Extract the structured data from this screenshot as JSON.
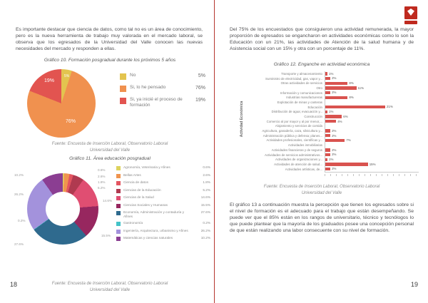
{
  "divider_color": "#b5362e",
  "left_page": {
    "page_number": "18",
    "intro": "Es importante destacar que ciencia de datos, como tal no es un área de conocimiento, pero es la nueva herramienta de trabajo muy valorada en el mercado laboral, se observa que los egresados de la Universidad del Valle conocen las nuevas necesidades del mercado y responden a ellas.",
    "grafico10": {
      "fuente": [
        "Fuente: Encuesta de Inserción Laboral, Observatorio Laboral",
        "Universidad del Valle"
      ]
    },
    "grafico11": {
      "fuente": [
        "Fuente: Encuesta de Inserción Laboral, Observatorio Laboral",
        "Universidad del Valle"
      ]
    }
  },
  "right_page": {
    "page_number": "19",
    "intro": "Del 75% de los encuestados que consiguieron una actividad remunerada, la mayor proporción de egresados se engancharon en actividades económicas como lo son la Educación con un 21%, las actividades de Atención de la salud humana y de Asistencia social con un 15% y otra con un porcentaje de 11%.",
    "grafico12": {
      "fuente": [
        "Fuente: Encuesta de Inserción Laboral, Observatorio Laboral",
        "Universidad del Valle"
      ]
    },
    "closing": "El gráfico 13 a continuación muestra la percepción que tienen los egresados sobre si el nivel de formación es el adecuado para el trabajo que están desempeñando. Se puede ver que el 85% están en los rangos de universitario, técnico y tecnólogos lo que puede plantear que la mayoría de los graduados posee una concepción personal de que están realizando una labor consecuente con su nivel de formación."
  },
  "chart_data": [
    {
      "id": "grafico10",
      "type": "pie",
      "title": "Gráfico 10. Formación posgradual durante los próximos 5 años",
      "labels": [
        "No",
        "Si, lo he pensado",
        "Si, ya inicié el proceso de formación"
      ],
      "values": [
        5,
        76,
        19
      ],
      "value_labels": [
        "5%",
        "76%",
        "19%"
      ],
      "colors": [
        "#e3c44f",
        "#f0914f",
        "#e25450"
      ],
      "legend_position": "right"
    },
    {
      "id": "grafico11",
      "type": "pie",
      "donut": true,
      "title": "Gráfico 11. Área educación posgradual",
      "labels": [
        "Agronomía, Veterinaria y Afines",
        "Bellas Artes",
        "Ciencia de datos",
        "Ciencias de la Educación",
        "Ciencias de la Salud",
        "Ciencias Sociales y Humanas",
        "Economía, Administración y contaduría y Afines",
        "Gastronomía",
        "Ingeniería, Arquitectura, urbanismo y Afines",
        "Matemáticas y ciencias naturales"
      ],
      "values": [
        0.6,
        2.6,
        1.8,
        5.2,
        14.6,
        15.5,
        27.6,
        0.2,
        26.2,
        10.2
      ],
      "value_labels": [
        "0.6%",
        "2.6%",
        "1.8%",
        "5.2%",
        "14.6%",
        "15.5%",
        "27.6%",
        "0.2%",
        "26.2%",
        "10.2%"
      ],
      "colors": [
        "#ddd35e",
        "#f0944f",
        "#e35560",
        "#b03a50",
        "#e04e72",
        "#97275f",
        "#2f6a8e",
        "#45c3c8",
        "#a392dc",
        "#8b3e92"
      ],
      "legend_position": "right"
    },
    {
      "id": "grafico12",
      "type": "bar",
      "orientation": "horizontal",
      "title": "Gráfico 12. Enganche en actividad económica",
      "ylabel": "Actividad Económica",
      "bar_color": "#d9534f",
      "xlim": [
        0,
        22
      ],
      "categories": [
        "Transporte y almacenamiento",
        "Suministro de electricidad, gas, vapor y...",
        "Otras actividades de servicios",
        "Otro",
        "Información y comunicaciones",
        "Industrias manufactureras",
        "Explotación de minas y canteras",
        "Educación",
        "Distribución de agua; evacuación y...",
        "Construcción",
        "Comercio al por mayor y al por menor,...",
        "Alojamiento y servicios de comida",
        "Agricultura, ganadería, caza, silvicultura y...",
        "Administración pública y defensa; planes...",
        "Actividades profesionales, científicas y...",
        "Actividades inmobiliarias",
        "Actividades financieras y de seguros",
        "Actividades de servicios administrativos...",
        "Actividades de organizaciones y...",
        "Actividades de atención de salud...",
        "Actividades artísticas, de..."
      ],
      "values": [
        1,
        2,
        8,
        11,
        2,
        8,
        0,
        21,
        1,
        6,
        4,
        0,
        2,
        2,
        7,
        0,
        2,
        2,
        1,
        15,
        2
      ],
      "value_labels": [
        "1%",
        "2%",
        "8%",
        "11%",
        "2%",
        "8%",
        "",
        "21%",
        "1%",
        "6%",
        "4%",
        "",
        "2%",
        "2%",
        "7%",
        "",
        "2%",
        "2%",
        "1%",
        "15%",
        "2%"
      ]
    }
  ]
}
